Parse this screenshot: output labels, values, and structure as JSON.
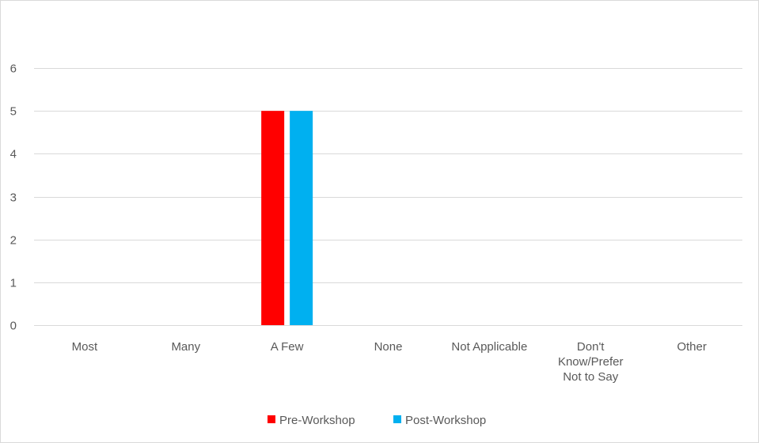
{
  "chart_data": {
    "type": "bar",
    "categories": [
      [
        "Most"
      ],
      [
        "Many"
      ],
      [
        "A Few"
      ],
      [
        "None"
      ],
      [
        "Not Applicable"
      ],
      [
        "Don't",
        "Know/Prefer",
        "Not to Say"
      ],
      [
        "Other"
      ]
    ],
    "series": [
      {
        "name": "Pre-Workshop",
        "color": "#ff0000",
        "values": [
          0,
          0,
          5,
          0,
          0,
          0,
          0
        ]
      },
      {
        "name": "Post-Workshop",
        "color": "#00b0f0",
        "values": [
          0,
          0,
          5,
          0,
          0,
          0,
          0
        ]
      }
    ],
    "yticks": [
      0,
      1,
      2,
      3,
      4,
      5,
      6
    ],
    "ylim": [
      0,
      6
    ],
    "grid": true,
    "legend_position": "bottom",
    "title": "",
    "xlabel": "",
    "ylabel": ""
  }
}
